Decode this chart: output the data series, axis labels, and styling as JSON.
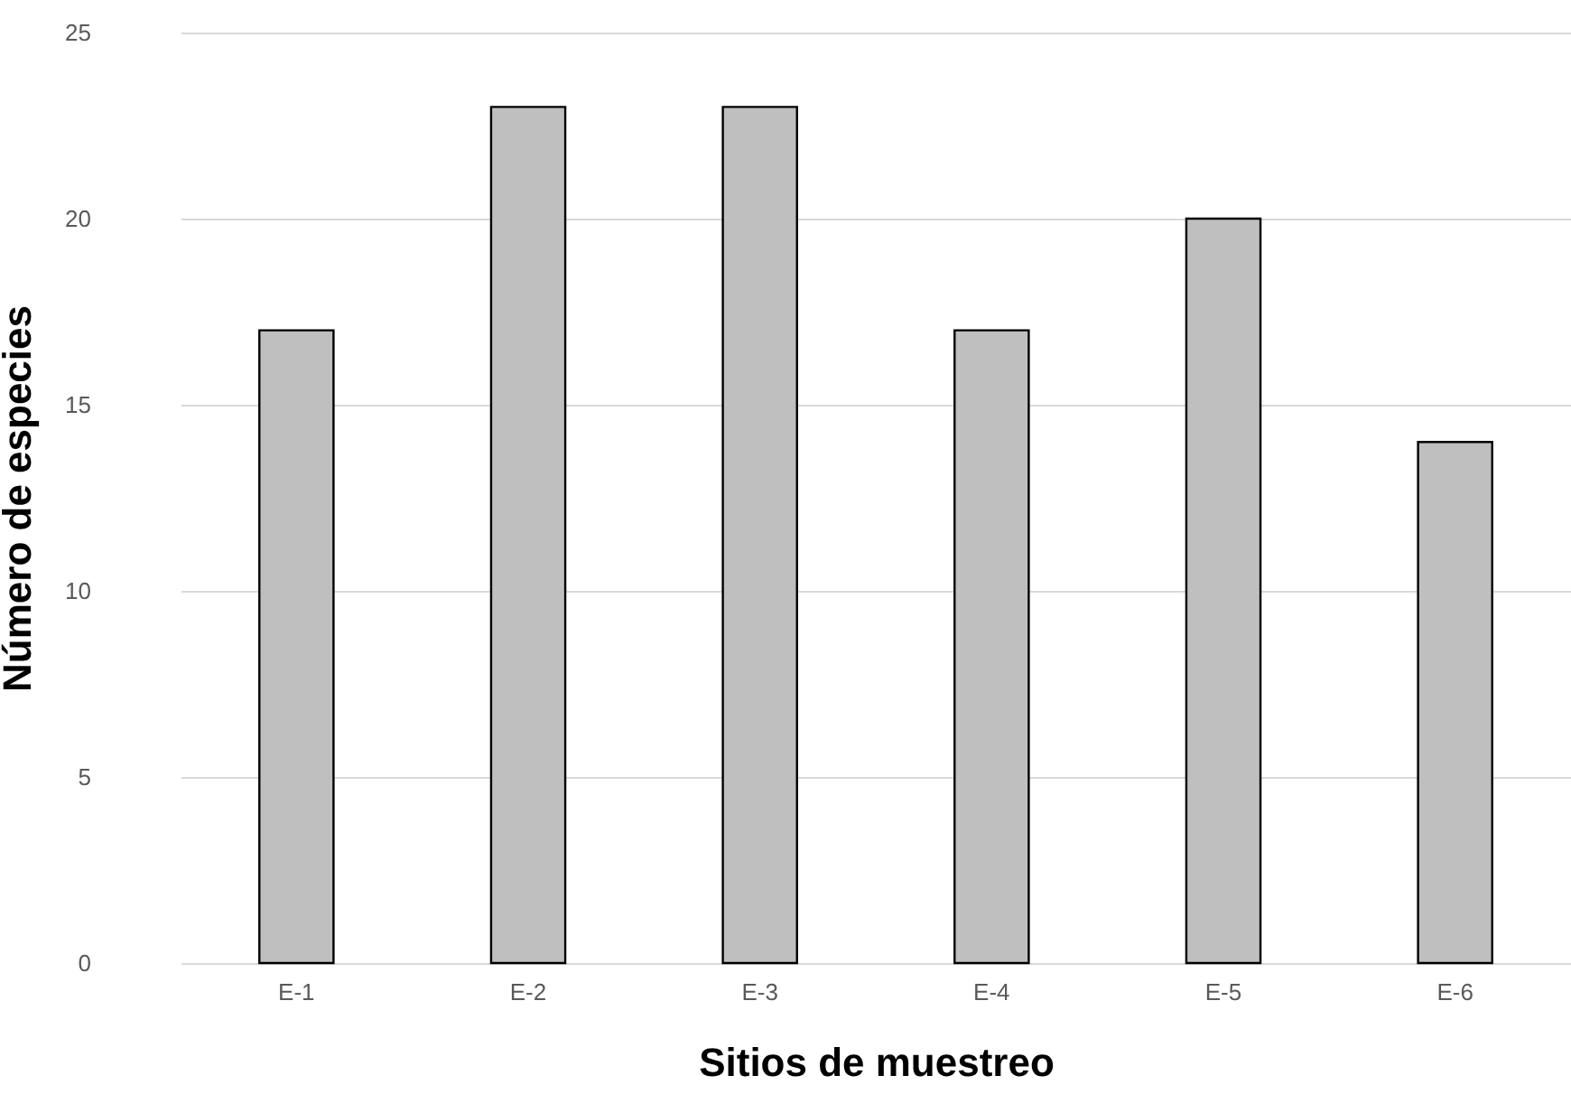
{
  "chart_data": {
    "type": "bar",
    "xlabel": "Sitios de muestreo",
    "ylabel": "Número de especies",
    "categories": [
      "E-1",
      "E-2",
      "E-3",
      "E-4",
      "E-5",
      "E-6"
    ],
    "values": [
      17,
      23,
      23,
      17,
      20,
      14
    ],
    "color": "#bfbfbf",
    "ylim": [
      0,
      25
    ],
    "yticks": [
      0,
      5,
      10,
      15,
      20,
      25
    ],
    "grid": "y"
  }
}
